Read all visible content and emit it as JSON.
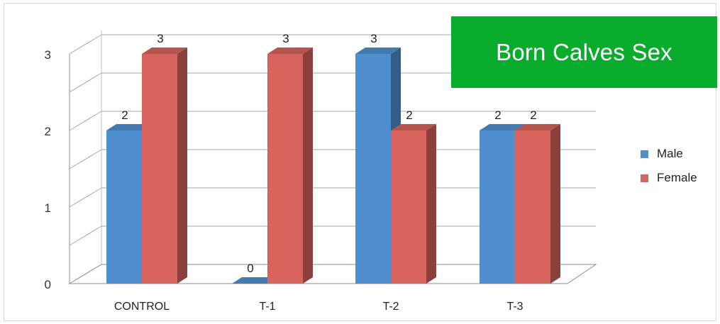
{
  "chart_data": {
    "type": "bar",
    "title": "Born Calves Sex",
    "categories": [
      "CONTROL",
      "T-1",
      "T-2",
      "T-3"
    ],
    "series": [
      {
        "name": "Male",
        "values": [
          2,
          0,
          3,
          2
        ],
        "color": "#4f8fce"
      },
      {
        "name": "Female",
        "values": [
          3,
          3,
          2,
          2
        ],
        "color": "#d6635c"
      }
    ],
    "ylim": [
      0,
      3
    ],
    "yticks": [
      0,
      1,
      2,
      3
    ],
    "grid": true,
    "legend_position": "right",
    "style": "3d-clustered-column"
  }
}
